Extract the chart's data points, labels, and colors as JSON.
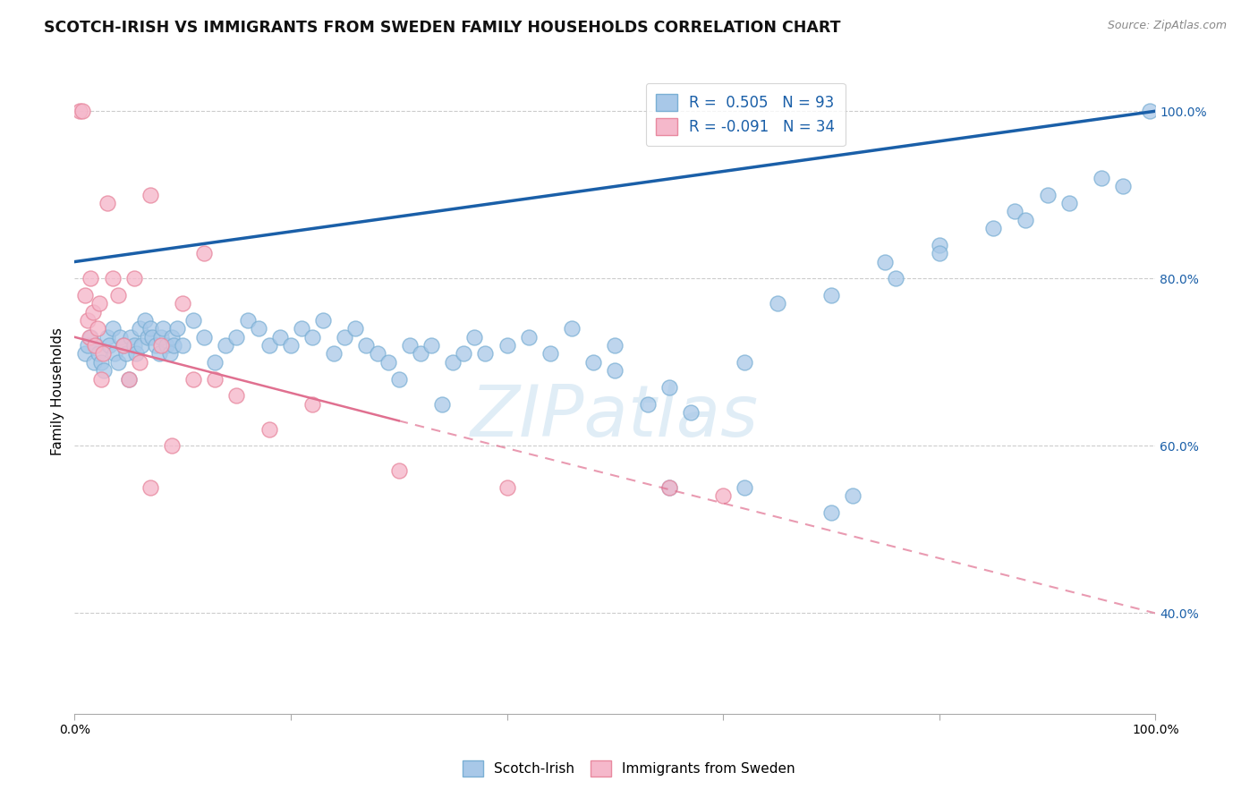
{
  "title": "SCOTCH-IRISH VS IMMIGRANTS FROM SWEDEN FAMILY HOUSEHOLDS CORRELATION CHART",
  "source": "Source: ZipAtlas.com",
  "ylabel": "Family Households",
  "y_ticks": [
    40.0,
    60.0,
    80.0,
    100.0
  ],
  "y_tick_labels": [
    "40.0%",
    "60.0%",
    "80.0%",
    "100.0%"
  ],
  "x_range": [
    0,
    100
  ],
  "y_range": [
    28,
    105
  ],
  "legend_text_blue": "R =  0.505   N = 93",
  "legend_text_pink": "R = -0.091   N = 34",
  "watermark": "ZIPatlas",
  "blue_color": "#a8c8e8",
  "blue_edge_color": "#7aafd4",
  "blue_line_color": "#1a5fa8",
  "pink_color": "#f5b8cb",
  "pink_edge_color": "#e8899f",
  "pink_line_color": "#e07090",
  "grid_color": "#cccccc",
  "blue_trend_x0": 0,
  "blue_trend_x1": 100,
  "blue_trend_y0": 82,
  "blue_trend_y1": 100,
  "pink_solid_x0": 0,
  "pink_solid_x1": 30,
  "pink_solid_y0": 73,
  "pink_solid_y1": 63,
  "pink_dash_x0": 30,
  "pink_dash_x1": 100,
  "pink_dash_y0": 63,
  "pink_dash_y1": 40,
  "scotch_irish_x": [
    1.0,
    1.2,
    1.5,
    1.8,
    2.0,
    2.2,
    2.5,
    2.7,
    3.0,
    3.2,
    3.5,
    3.7,
    4.0,
    4.2,
    4.5,
    4.8,
    5.0,
    5.2,
    5.5,
    5.7,
    6.0,
    6.2,
    6.5,
    6.8,
    7.0,
    7.2,
    7.5,
    7.8,
    8.0,
    8.2,
    8.5,
    8.8,
    9.0,
    9.2,
    9.5,
    10.0,
    11.0,
    12.0,
    13.0,
    14.0,
    15.0,
    16.0,
    17.0,
    18.0,
    19.0,
    20.0,
    21.0,
    22.0,
    23.0,
    24.0,
    25.0,
    26.0,
    27.0,
    28.0,
    29.0,
    30.0,
    31.0,
    32.0,
    33.0,
    34.0,
    35.0,
    36.0,
    37.0,
    38.0,
    40.0,
    42.0,
    44.0,
    46.0,
    48.0,
    50.0,
    53.0,
    55.0,
    57.0,
    62.0,
    65.0,
    70.0,
    75.0,
    80.0,
    85.0,
    87.0,
    90.0,
    92.0,
    95.0,
    97.0,
    99.5,
    50.0,
    55.0,
    62.0,
    70.0,
    72.0,
    76.0,
    80.0,
    88.0
  ],
  "scotch_irish_y": [
    71,
    72,
    73,
    70,
    72,
    71,
    70,
    69,
    73,
    72,
    74,
    71,
    70,
    73,
    72,
    71,
    68,
    73,
    72,
    71,
    74,
    72,
    75,
    73,
    74,
    73,
    72,
    71,
    73,
    74,
    72,
    71,
    73,
    72,
    74,
    72,
    75,
    73,
    70,
    72,
    73,
    75,
    74,
    72,
    73,
    72,
    74,
    73,
    75,
    71,
    73,
    74,
    72,
    71,
    70,
    68,
    72,
    71,
    72,
    65,
    70,
    71,
    73,
    71,
    72,
    73,
    71,
    74,
    70,
    69,
    65,
    67,
    64,
    70,
    77,
    78,
    82,
    84,
    86,
    88,
    90,
    89,
    92,
    91,
    100,
    72,
    55,
    55,
    52,
    54,
    80,
    83,
    87
  ],
  "sweden_x": [
    0.5,
    0.7,
    1.0,
    1.2,
    1.4,
    1.5,
    1.7,
    1.9,
    2.1,
    2.3,
    2.6,
    3.0,
    3.5,
    4.0,
    4.5,
    5.0,
    5.5,
    6.0,
    7.0,
    8.0,
    9.0,
    10.0,
    11.0,
    13.0,
    15.0,
    18.0,
    22.0,
    30.0,
    40.0,
    55.0,
    60.0,
    2.5,
    7.0,
    12.0
  ],
  "sweden_y": [
    100,
    100,
    78,
    75,
    73,
    80,
    76,
    72,
    74,
    77,
    71,
    89,
    80,
    78,
    72,
    68,
    80,
    70,
    90,
    72,
    60,
    77,
    68,
    68,
    66,
    62,
    65,
    57,
    55,
    55,
    54,
    68,
    55,
    83
  ]
}
